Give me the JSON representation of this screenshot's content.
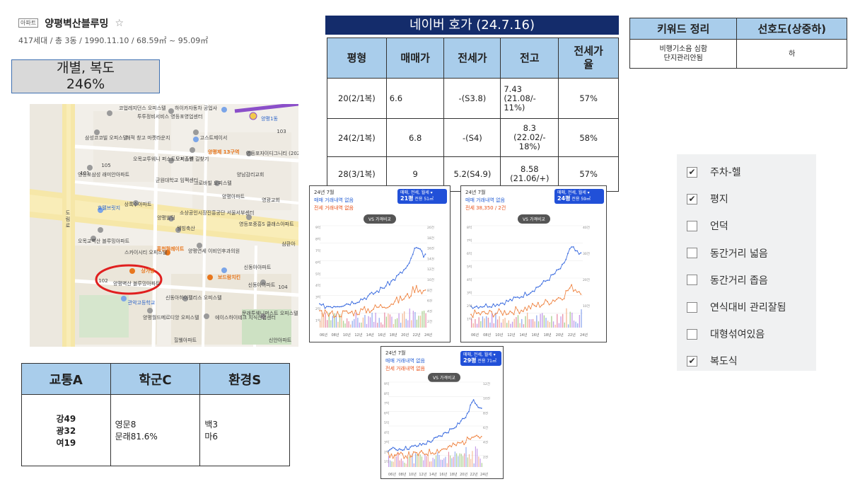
{
  "apartment": {
    "badge": "아파트",
    "name": "양평벽산블루밍",
    "star": "☆",
    "info": "417세대 / 총 3동 / 1990.11.10 / 68.59㎡ ~ 95.09㎡"
  },
  "type_box": {
    "line1": "개별, 복도",
    "line2": "246%"
  },
  "map": {
    "labels": [
      "코업레지던스 오피스텔",
      "투투정비서비스 영등포영업센터",
      "하이카자동차 공업사",
      "양평1동",
      "삼성코코빌 오피스텔",
      "해적 창고 마켓라운지",
      "고스트제이서",
      "오목교투웨니 퍼스트오피스텔",
      "도서출판 길찾기",
      "양평제 13구역",
      "영등포자이디그니티 (2026년03월예정)",
      "영등포삼성 래미안아파트",
      "군원대학교 임팩센터",
      "크로바빌 오피스텔",
      "양남감리교회",
      "상록수아파트",
      "양평아파트",
      "영광교회",
      "호텔브릿지",
      "양평빌딩",
      "소상공인시장진흥공단 서울서부센터",
      "영등포중흥S 클래스아파트",
      "웰빙축산",
      "삼환아",
      "오목교벽산 블루밍아파트",
      "스카이시티 오피스텔",
      "홍천월례이트",
      "양평연세 이비인후과의원",
      "상가동",
      "양평벽산 블루밍아파트",
      "보드람치킨",
      "신동아아파트",
      "관악고등학교",
      "신동아아파트",
      "신동아하이펠리스 오피스텔",
      "양평월드메르디앙 오피스텔",
      "에이스하이테크 지식산업센터",
      "문래투웨니퍼스트 오피스텔",
      "힐웰아파트",
      "신안아파트",
      "103",
      "104",
      "105",
      "101",
      "102"
    ],
    "road_label": "도림로",
    "highlight": "상가동"
  },
  "score_table": {
    "headers": [
      "교통A",
      "학군C",
      "환경S"
    ],
    "traffic": [
      "강49",
      "광32",
      "여19"
    ],
    "school": [
      "영문8",
      "문래81.6%"
    ],
    "environment": [
      "백3",
      "마6"
    ]
  },
  "naver": {
    "title": "네이버 호가 (24.7.16)",
    "headers": [
      "평형",
      "매매가",
      "전세가",
      "전고",
      "전세가\n율"
    ],
    "rows": [
      [
        "20(2/1복)",
        "6.6",
        "-(S3.8)",
        "7.43\n(21.08/-\n11%)",
        "57%"
      ],
      [
        "24(2/1복)",
        "6.8",
        "-(S4)",
        "8.3\n(22.02/-\n18%)",
        "58%"
      ],
      [
        "28(3/1복)",
        "9",
        "5.2(S4.9)",
        "8.58\n(21.06/+)",
        "57%"
      ]
    ]
  },
  "keyword": {
    "headers": [
      "키워드 정리",
      "선호도(상중하)"
    ],
    "keywords": [
      "비행기소음 심함",
      "단지관리안됨"
    ],
    "preference": "하"
  },
  "checklist": [
    {
      "label": "주차-헬",
      "checked": true
    },
    {
      "label": "평지",
      "checked": true
    },
    {
      "label": "언덕",
      "checked": false
    },
    {
      "label": "동간거리 넓음",
      "checked": false
    },
    {
      "label": "동간거리 좁음",
      "checked": false
    },
    {
      "label": "연식대비 관리잘됨",
      "checked": false
    },
    {
      "label": "대형섞여있음",
      "checked": false
    },
    {
      "label": "복도식",
      "checked": true
    }
  ],
  "charts": [
    {
      "title": "24년 7월",
      "line1": "매매 거래내역 없음",
      "line2": "전세 거래내역 없음",
      "badge_top": "매매, 전세, 월세 ▾",
      "badge_size": "21평",
      "badge_area": "전용 51㎡",
      "vs": "VS 가격비교",
      "x_labels": [
        "06년",
        "08년",
        "10년",
        "12년",
        "14년",
        "16년",
        "18년",
        "20년",
        "22년",
        "24년"
      ],
      "y_left": [
        "9억",
        "8억",
        "7억",
        "6억",
        "5억",
        "4억",
        "3억",
        "2억",
        "1억"
      ],
      "y_right": [
        "20건",
        "18건",
        "16건",
        "14건",
        "12건",
        "10건",
        "8건",
        "6건",
        "4건",
        "2건"
      ]
    },
    {
      "title": "24년 7월",
      "line1": "매매 거래내역 없음",
      "line2": "전세 38,350 / 2건",
      "badge_top": "매매, 전세, 월세 ▾",
      "badge_size": "24평",
      "badge_area": "전용 59㎡",
      "vs": "VS 가격비교",
      "x_labels": [
        "06년",
        "08년",
        "10년",
        "12년",
        "14년",
        "16년",
        "18년",
        "20년",
        "22년",
        "24년"
      ],
      "y_left": [
        "8억",
        "7억",
        "6억",
        "5억",
        "4억",
        "3억",
        "2억",
        "1억"
      ],
      "y_right": [
        "40건",
        "30건",
        "20건",
        "10건"
      ]
    },
    {
      "title": "24년 7월",
      "line1": "매매 거래내역 없음",
      "line2": "전세 거래내역 없음",
      "badge_top": "매매, 전세, 월세 ▾",
      "badge_size": "29평",
      "badge_area": "전용 71㎡",
      "vs": "VS 가격비교",
      "x_labels": [
        "06년",
        "08년",
        "10년",
        "12년",
        "14년",
        "16년",
        "18년",
        "20년",
        "22년",
        "24년"
      ],
      "y_left": [
        "9억",
        "8억",
        "7억",
        "6억",
        "5억",
        "4억",
        "3억",
        "2억",
        "1억"
      ],
      "y_right": [
        "12건",
        "10건",
        "8건",
        "6건",
        "4건",
        "2건"
      ]
    }
  ],
  "colors": {
    "header_blue": "#a9cdeb",
    "title_navy": "#142c6b",
    "sale_line": "#3f6fe0",
    "jeonse_line": "#f08a4b",
    "badge_blue": "#2150d8",
    "highlight_red": "#e01f1f"
  }
}
